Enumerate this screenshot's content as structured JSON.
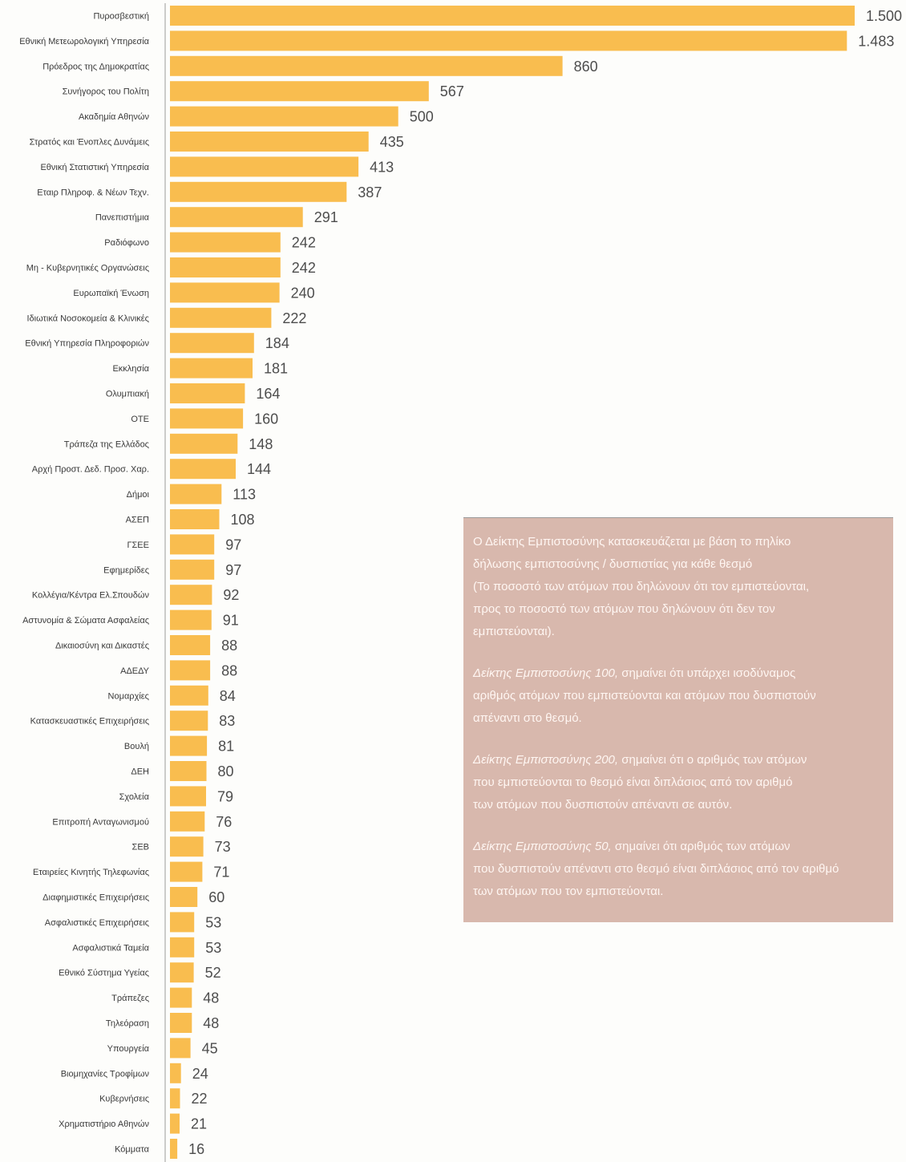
{
  "chart_data": {
    "type": "bar",
    "orientation": "horizontal",
    "categories": [
      "Πυροσβεστική",
      "Εθνική Μετεωρολογική Υπηρεσία",
      "Πρόεδρος της Δημοκρατίας",
      "Συνήγορος του Πολίτη",
      "Ακαδημία Αθηνών",
      "Στρατός και Ένοπλες Δυνάμεις",
      "Εθνική Στατιστική Υπηρεσία",
      "Εταιρ Πληροφ. & Νέων Τεχν.",
      "Πανεπιστήμια",
      "Ραδιόφωνο",
      "Μη - Κυβερνητικές Οργανώσεις",
      "Ευρωπαϊκή Ένωση",
      "Ιδιωτικά Νοσοκομεία & Κλινικές",
      "Εθνική Υπηρεσία Πληροφοριών",
      "Εκκλησία",
      "Ολυμπιακή",
      "ΟΤΕ",
      "Τράπεζα της Ελλάδος",
      "Αρχή Προστ. Δεδ. Προσ. Χαρ.",
      "Δήμοι",
      "ΑΣΕΠ",
      "ΓΣΕΕ",
      "Εφημερίδες",
      "Κολλέγια/Κέντρα Ελ.Σπουδών",
      "Αστυνομία & Σώματα Ασφαλείας",
      "Δικαιοσύνη και Δικαστές",
      "ΑΔΕΔΥ",
      "Νομαρχίες",
      "Κατασκευαστικές Επιχειρήσεις",
      "Βουλή",
      "ΔΕΗ",
      "Σχολεία",
      "Επιτροπή Ανταγωνισμού",
      "ΣΕΒ",
      "Εταιρείες Κινητής Τηλεφωνίας",
      "Διαφημιστικές Επιχειρήσεις",
      "Ασφαλιστικές Επιχειρήσεις",
      "Ασφαλιστικά Ταμεία",
      "Εθνικό Σύστημα Υγείας",
      "Τράπεζες",
      "Τηλεόραση",
      "Υπουργεία",
      "Βιομηχανίες Τροφίμων",
      "Κυβερνήσεις",
      "Χρηματιστήριο Αθηνών",
      "Κόμματα"
    ],
    "values": [
      1500,
      1483,
      860,
      567,
      500,
      435,
      413,
      387,
      291,
      242,
      242,
      240,
      222,
      184,
      181,
      164,
      160,
      148,
      144,
      113,
      108,
      97,
      97,
      92,
      91,
      88,
      88,
      84,
      83,
      81,
      80,
      79,
      76,
      73,
      71,
      60,
      53,
      53,
      52,
      48,
      48,
      45,
      24,
      22,
      21,
      16
    ],
    "data_labels": [
      "1.500",
      "1.483",
      "860",
      "567",
      "500",
      "435",
      "413",
      "387",
      "291",
      "242",
      "242",
      "240",
      "222",
      "184",
      "181",
      "164",
      "160",
      "148",
      "144",
      "113",
      "108",
      "97",
      "97",
      "92",
      "91",
      "88",
      "88",
      "84",
      "83",
      "81",
      "80",
      "79",
      "76",
      "73",
      "71",
      "60",
      "53",
      "53",
      "52",
      "48",
      "48",
      "45",
      "24",
      "22",
      "21",
      "16"
    ],
    "xlim": [
      0,
      1500
    ],
    "grid": false,
    "legend": "none",
    "colors": {
      "bar": "#f9bd4f",
      "axis": "#9a9a9a"
    }
  },
  "info_box": {
    "background": "#d8b8ad",
    "paragraphs": [
      {
        "lead": "",
        "lines": [
          "Ο Δείκτης Εμπιστοσύνης κατασκευάζεται με βάση το πηλίκο",
          "δήλωσης εμπιστοσύνης / δυσπιστίας για κάθε θεσμό",
          "(Το ποσοστό των ατόμων που δηλώνουν ότι τον εμπιστεύονται,",
          "προς το ποσοστό των ατόμων που δηλώνουν ότι δεν τον",
          "εμπιστεύονται)."
        ]
      },
      {
        "lead": "Δείκτης Εμπιστοσύνης 100,",
        "lines": [
          "σημαίνει ότι υπάρχει ισοδύναμος",
          "αριθμός ατόμων που εμπιστεύονται και ατόμων που δυσπιστούν",
          "απέναντι στο θεσμό."
        ]
      },
      {
        "lead": "Δείκτης Εμπιστοσύνης 200,",
        "lines": [
          "σημαίνει ότι ο αριθμός των ατόμων",
          "που εμπιστεύονται το θεσμό είναι διπλάσιος από τον αριθμό",
          "των ατόμων που δυσπιστούν απέναντι σε αυτόν."
        ]
      },
      {
        "lead": "Δείκτης Εμπιστοσύνης 50,",
        "lines": [
          "σημαίνει ότι αριθμός των ατόμων",
          "που δυσπιστούν απέναντι στο θεσμό είναι διπλάσιος από τον αριθμό",
          "των ατόμων που τον εμπιστεύονται."
        ]
      }
    ]
  }
}
